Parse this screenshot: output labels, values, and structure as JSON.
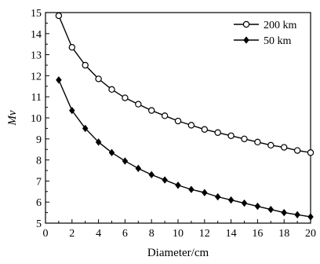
{
  "chart_data": {
    "type": "line",
    "title": "",
    "xlabel": "Diameter/cm",
    "ylabel": "Mv",
    "xlim": [
      0,
      20
    ],
    "ylim": [
      5,
      15
    ],
    "x_ticks": [
      "0",
      "2",
      "4",
      "6",
      "8",
      "10",
      "12",
      "14",
      "16",
      "18",
      "20"
    ],
    "y_ticks": [
      "5",
      "6",
      "7",
      "8",
      "9",
      "10",
      "11",
      "12",
      "13",
      "14",
      "15"
    ],
    "grid": false,
    "legend_position": "top-right",
    "series": [
      {
        "name": "200 km",
        "marker": "open-circle",
        "x": [
          1,
          2,
          3,
          4,
          5,
          6,
          7,
          8,
          9,
          10,
          11,
          12,
          13,
          14,
          15,
          16,
          17,
          18,
          19,
          20
        ],
        "y": [
          14.85,
          13.35,
          12.5,
          11.85,
          11.35,
          10.95,
          10.65,
          10.35,
          10.1,
          9.85,
          9.65,
          9.45,
          9.3,
          9.15,
          9.0,
          8.85,
          8.7,
          8.6,
          8.45,
          8.35
        ]
      },
      {
        "name": "50 km",
        "marker": "filled-diamond",
        "x": [
          1,
          2,
          3,
          4,
          5,
          6,
          7,
          8,
          9,
          10,
          11,
          12,
          13,
          14,
          15,
          16,
          17,
          18,
          19,
          20
        ],
        "y": [
          11.8,
          10.35,
          9.5,
          8.85,
          8.35,
          7.95,
          7.6,
          7.3,
          7.05,
          6.8,
          6.6,
          6.45,
          6.25,
          6.1,
          5.95,
          5.8,
          5.65,
          5.5,
          5.4,
          5.3
        ]
      }
    ]
  }
}
